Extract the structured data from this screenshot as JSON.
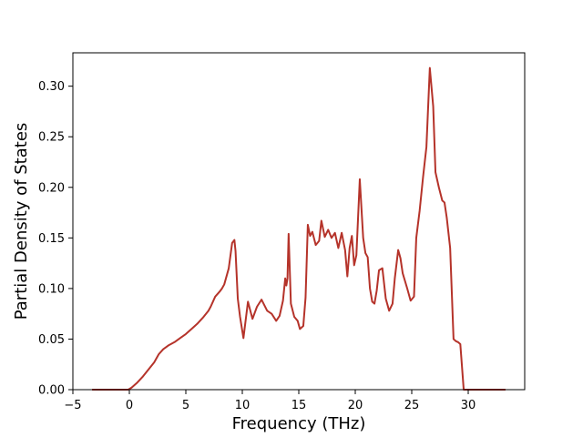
{
  "chart_data": {
    "type": "line",
    "title": "",
    "xlabel": "Frequency (THz)",
    "ylabel": "Partial Density of States",
    "xlim": [
      -5,
      35
    ],
    "ylim": [
      0,
      0.333
    ],
    "xticks": [
      -5,
      0,
      5,
      10,
      15,
      20,
      25,
      30
    ],
    "xtick_labels": [
      "−5",
      "0",
      "5",
      "10",
      "15",
      "20",
      "25",
      "30"
    ],
    "yticks": [
      0.0,
      0.05,
      0.1,
      0.15,
      0.2,
      0.25,
      0.3
    ],
    "ytick_labels": [
      "0.00",
      "0.05",
      "0.10",
      "0.15",
      "0.20",
      "0.25",
      "0.30"
    ],
    "grid": false,
    "legend": "none",
    "series": [
      {
        "color": "#b5332a",
        "x": [
          -3.3,
          -0.1,
          0.2,
          0.7,
          1.2,
          1.7,
          2.2,
          2.6,
          3.0,
          3.5,
          4.0,
          4.5,
          5.0,
          5.5,
          6.0,
          6.5,
          7.0,
          7.2,
          7.6,
          8.0,
          8.2,
          8.4,
          8.8,
          9.1,
          9.3,
          9.4,
          9.6,
          9.8,
          10.1,
          10.5,
          10.9,
          11.3,
          11.7,
          12.2,
          12.6,
          13.0,
          13.3,
          13.6,
          13.8,
          13.9,
          14.0,
          14.1,
          14.3,
          14.6,
          14.9,
          15.1,
          15.4,
          15.6,
          15.8,
          16.0,
          16.2,
          16.5,
          16.8,
          17.0,
          17.3,
          17.6,
          17.9,
          18.2,
          18.5,
          18.8,
          19.1,
          19.3,
          19.5,
          19.7,
          19.9,
          20.1,
          20.4,
          20.7,
          20.9,
          21.1,
          21.3,
          21.5,
          21.7,
          21.9,
          22.1,
          22.4,
          22.7,
          23.0,
          23.3,
          23.5,
          23.8,
          24.0,
          24.2,
          24.6,
          24.9,
          25.2,
          25.4,
          25.7,
          26.0,
          26.3,
          26.6,
          26.9,
          27.1,
          27.4,
          27.7,
          27.9,
          28.1,
          28.4,
          28.7,
          28.9,
          29.1,
          29.3,
          29.6,
          30.0,
          30.2,
          30.4,
          33.3
        ],
        "y": [
          0.0,
          0.0,
          0.002,
          0.007,
          0.013,
          0.02,
          0.027,
          0.035,
          0.04,
          0.044,
          0.047,
          0.051,
          0.055,
          0.06,
          0.065,
          0.071,
          0.078,
          0.082,
          0.092,
          0.097,
          0.1,
          0.104,
          0.12,
          0.145,
          0.148,
          0.137,
          0.09,
          0.072,
          0.051,
          0.087,
          0.07,
          0.082,
          0.089,
          0.078,
          0.075,
          0.068,
          0.073,
          0.088,
          0.11,
          0.103,
          0.11,
          0.154,
          0.085,
          0.072,
          0.068,
          0.06,
          0.063,
          0.091,
          0.163,
          0.152,
          0.156,
          0.143,
          0.147,
          0.167,
          0.151,
          0.158,
          0.15,
          0.155,
          0.14,
          0.155,
          0.138,
          0.112,
          0.14,
          0.152,
          0.123,
          0.133,
          0.208,
          0.15,
          0.135,
          0.131,
          0.1,
          0.087,
          0.085,
          0.098,
          0.118,
          0.12,
          0.09,
          0.078,
          0.085,
          0.11,
          0.138,
          0.13,
          0.115,
          0.1,
          0.088,
          0.092,
          0.15,
          0.177,
          0.21,
          0.24,
          0.318,
          0.28,
          0.215,
          0.2,
          0.187,
          0.185,
          0.17,
          0.14,
          0.05,
          0.048,
          0.047,
          0.045,
          0.0,
          0.0,
          0.0,
          0.0,
          0.0
        ]
      }
    ]
  }
}
